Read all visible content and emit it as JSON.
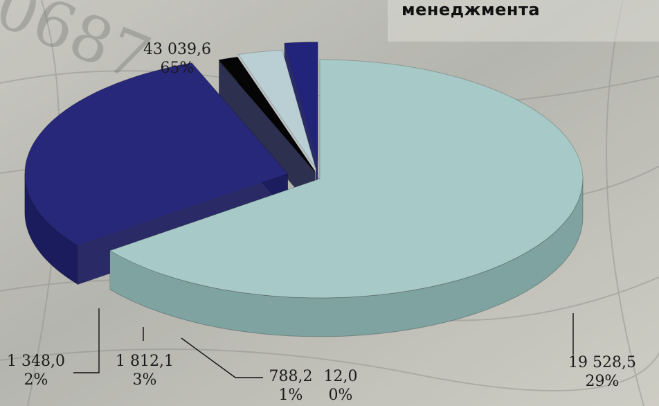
{
  "header": {
    "title": "менеджмента"
  },
  "chart_data": {
    "type": "pie",
    "title": "менеджмента",
    "variant": "3d-exploded",
    "slices": [
      {
        "value": "43 039,6",
        "percent": "65%",
        "color": "#a7c9c7",
        "side_color": "#7fa3a1"
      },
      {
        "value": "19 528,5",
        "percent": "29%",
        "color": "#27287a",
        "side_color": "#1b1c5e"
      },
      {
        "value": "12,0",
        "percent": "0%",
        "color": "#3b4160",
        "side_color": "#2d3250"
      },
      {
        "value": "788,2",
        "percent": "1%",
        "color": "#050505",
        "side_color": "#000000"
      },
      {
        "value": "1 812,1",
        "percent": "3%",
        "color": "#b9cfd3",
        "side_color": "#c3c7c9"
      },
      {
        "value": "1 348,0",
        "percent": "2%",
        "color": "#22237a",
        "side_color": "#1b1c62"
      }
    ],
    "legend": "none"
  }
}
